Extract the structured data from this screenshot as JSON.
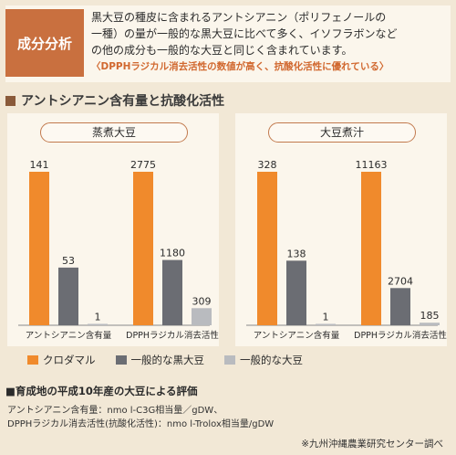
{
  "header": {
    "badge": "成分分析",
    "lines": [
      "黒大豆の種皮に含まれるアントシアニン（ポリフェノールの",
      "一種）の量が一般的な黒大豆に比べて多く、イソフラボンなど",
      "の他の成分も一般的な大豆と同じく含まれています。"
    ],
    "highlight": "〈DPPHラジカル消去活性の数値が高く、抗酸化活性に優れている〉"
  },
  "section_title": "アントシアニン含有量と抗酸化活性",
  "colors": {
    "kurodamaru": "#f08a2c",
    "black_soy": "#6b6d73",
    "soy": "#b9bbbf",
    "accent": "#c9703f"
  },
  "chart_data": [
    {
      "type": "bar",
      "title": "蒸煮大豆",
      "categories": [
        "アントシアニン含有量",
        "DPPHラジカル消去活性"
      ],
      "series": [
        {
          "name": "クロダマル",
          "values": [
            141,
            2775
          ]
        },
        {
          "name": "一般的な黒大豆",
          "values": [
            53,
            1180
          ]
        },
        {
          "name": "一般的な大豆",
          "values": [
            1,
            309
          ]
        }
      ]
    },
    {
      "type": "bar",
      "title": "大豆煮汁",
      "categories": [
        "アントシアニン含有量",
        "DPPHラジカル消去活性"
      ],
      "series": [
        {
          "name": "クロダマル",
          "values": [
            328,
            11163
          ]
        },
        {
          "name": "一般的な黒大豆",
          "values": [
            138,
            2704
          ]
        },
        {
          "name": "一般的な大豆",
          "values": [
            1,
            185
          ]
        }
      ]
    }
  ],
  "legend": [
    "クロダマル",
    "一般的な黒大豆",
    "一般的な大豆"
  ],
  "evaluation": {
    "title": "■育成地の平成10年産の大豆による評価",
    "line1": "アントシアニン含有量：nmo l-C3G相当量／gDW、",
    "line2": "DPPHラジカル消去活性(抗酸化活性)：nmo l-Trolox相当量/gDW"
  },
  "source": "※九州沖縄農業研究センター調べ"
}
